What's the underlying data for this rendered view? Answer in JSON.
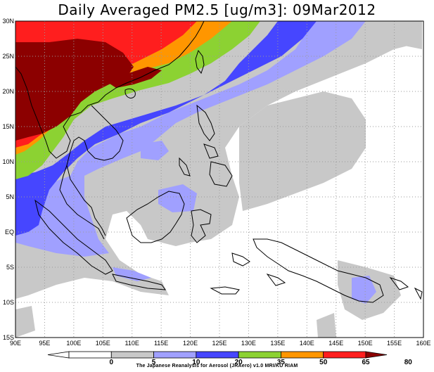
{
  "title": "Daily Averaged PM2.5 [ug/m3]: 09Mar2012",
  "credit": "The Japanese Reanalysis for Aerosol (JRAero) v1.0 MRI/KU RIAM",
  "lon_labels": [
    "90E",
    "95E",
    "100E",
    "105E",
    "110E",
    "115E",
    "120E",
    "125E",
    "130E",
    "135E",
    "140E",
    "145E",
    "150E",
    "155E",
    "160E"
  ],
  "lat_labels": [
    "30N",
    "25N",
    "20N",
    "15N",
    "10N",
    "5N",
    "EQ",
    "5S",
    "10S",
    "15S"
  ],
  "colorbar": {
    "labels": [
      "0",
      "5",
      "10",
      "20",
      "35",
      "50",
      "65",
      "80"
    ],
    "colors": [
      "#ffffff",
      "#ffffff",
      "#c8c8c8",
      "#a0a0ff",
      "#4646ff",
      "#8cd232",
      "#ff9600",
      "#ff1e1e",
      "#8c0000"
    ]
  },
  "colors": {
    "land_outline": "#000000",
    "grid": "#9a9a9a",
    "gray": "#c8c8c8",
    "light_blue": "#a0a0ff",
    "blue": "#4646ff",
    "green": "#8cd232",
    "orange": "#ff9600",
    "red": "#ff1e1e",
    "dark_red": "#8c0000"
  }
}
